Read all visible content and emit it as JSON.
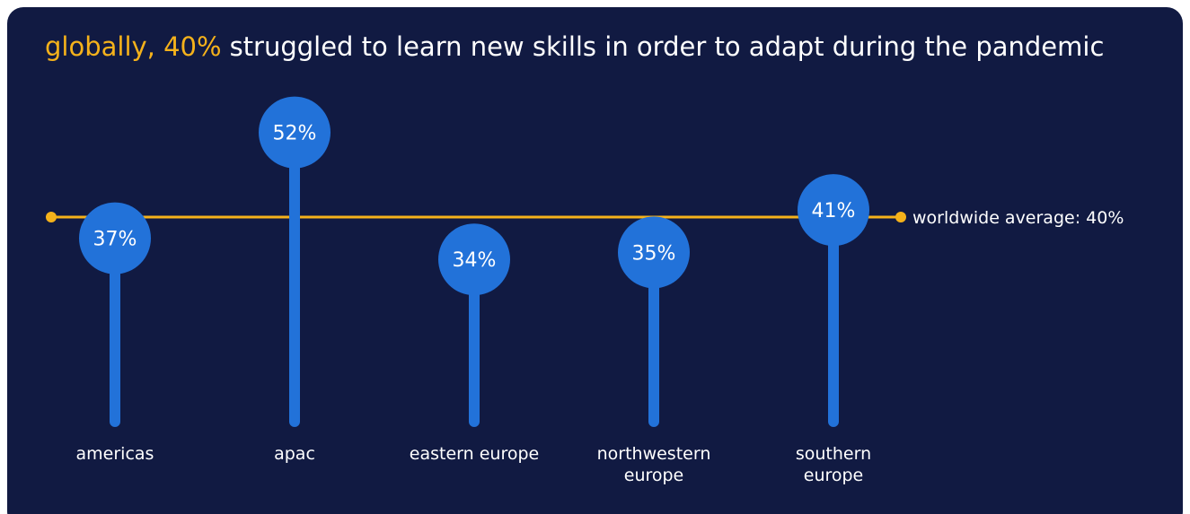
{
  "chart_data": {
    "type": "lollipop",
    "title_highlight": "globally, 40%",
    "title": "struggled to learn new skills in order to adapt during the pandemic",
    "categories": [
      "americas",
      "apac",
      "eastern europe",
      "northwestern europe",
      "southern europe"
    ],
    "values": [
      37,
      52,
      34,
      35,
      41
    ],
    "value_labels": [
      "37%",
      "52%",
      "34%",
      "35%",
      "41%"
    ],
    "color": "#2272d9",
    "reference_line": {
      "value": 40,
      "label": "worldwide average: 40%",
      "color": "#f5b21b"
    },
    "ylim": [
      10,
      55
    ]
  }
}
